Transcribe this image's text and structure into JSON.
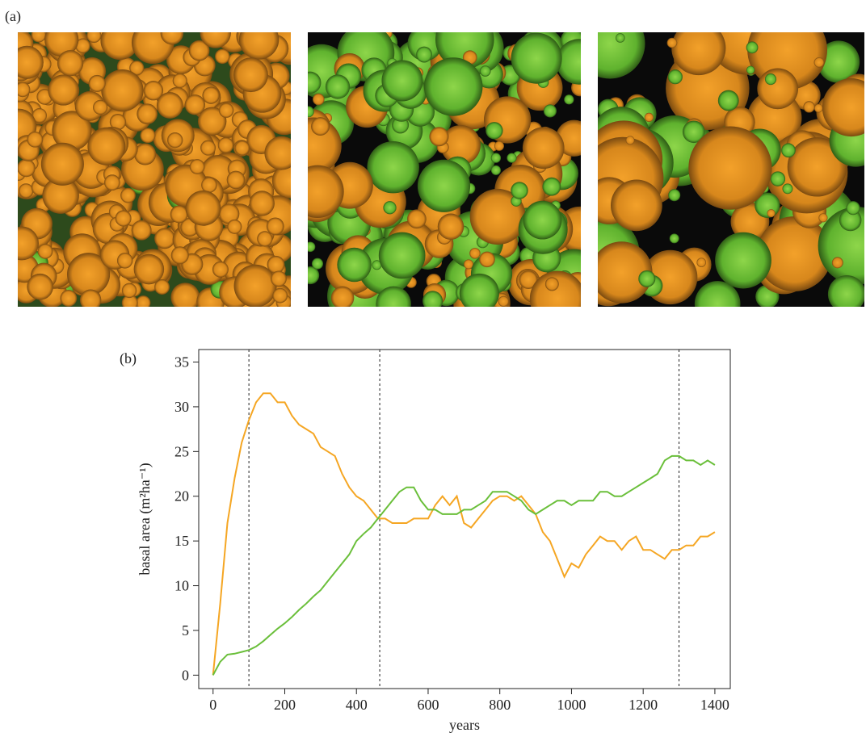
{
  "chart_data": {
    "type": "line",
    "panel_a_label": "(a)",
    "panel_b_label": "(b)",
    "xlabel": "years",
    "ylabel": "basal area (m²ha⁻¹)",
    "x": [
      0,
      20,
      40,
      60,
      80,
      100,
      120,
      140,
      160,
      180,
      200,
      220,
      240,
      260,
      280,
      300,
      320,
      340,
      360,
      380,
      400,
      420,
      440,
      460,
      480,
      500,
      520,
      540,
      560,
      580,
      600,
      620,
      640,
      660,
      680,
      700,
      720,
      740,
      760,
      780,
      800,
      820,
      840,
      860,
      880,
      900,
      920,
      940,
      960,
      980,
      1000,
      1020,
      1040,
      1060,
      1080,
      1100,
      1120,
      1140,
      1160,
      1180,
      1200,
      1220,
      1240,
      1260,
      1280,
      1300,
      1320,
      1340,
      1360,
      1380,
      1400
    ],
    "series": [
      {
        "color": "#f5a623",
        "values": [
          0,
          8,
          17,
          22,
          26,
          28.5,
          30.5,
          31.5,
          31.5,
          30.5,
          30.5,
          29,
          28,
          27.5,
          27,
          25.5,
          25,
          24.5,
          22.5,
          21,
          20,
          19.5,
          18.5,
          17.5,
          17.5,
          17,
          17,
          17,
          17.5,
          17.5,
          17.5,
          19,
          20,
          19,
          20,
          17,
          16.5,
          17.5,
          18.5,
          19.5,
          20,
          20,
          19.5,
          20,
          19,
          18,
          16,
          15,
          13,
          11,
          12.5,
          12,
          13.5,
          14.5,
          15.5,
          15,
          15,
          14,
          15,
          15.5,
          14,
          14,
          13.5,
          13,
          14,
          14,
          14.5,
          14.5,
          15.5,
          15.5,
          16
        ]
      },
      {
        "color": "#6abf3a",
        "values": [
          0,
          1.5,
          2.3,
          2.4,
          2.6,
          2.8,
          3.2,
          3.8,
          4.5,
          5.2,
          5.8,
          6.5,
          7.3,
          8,
          8.8,
          9.5,
          10.5,
          11.5,
          12.5,
          13.5,
          15,
          15.8,
          16.5,
          17.5,
          18.5,
          19.5,
          20.5,
          21,
          21,
          19.5,
          18.5,
          18.5,
          18,
          18,
          18,
          18.5,
          18.5,
          19,
          19.5,
          20.5,
          20.5,
          20.5,
          20,
          19.5,
          18.5,
          18,
          18.5,
          19,
          19.5,
          19.5,
          19,
          19.5,
          19.5,
          19.5,
          20.5,
          20.5,
          20,
          20,
          20.5,
          21,
          21.5,
          22,
          22.5,
          24,
          24.5,
          24.5,
          24,
          24,
          23.5,
          24,
          23.5
        ]
      }
    ],
    "vlines": [
      100,
      465,
      1300
    ],
    "xlim": [
      -40,
      1443
    ],
    "ylim": [
      -1.5,
      36.4
    ],
    "xticks": [
      0,
      200,
      400,
      600,
      800,
      1000,
      1200,
      1400
    ],
    "yticks": [
      0,
      5,
      10,
      15,
      20,
      25,
      30,
      35
    ]
  }
}
